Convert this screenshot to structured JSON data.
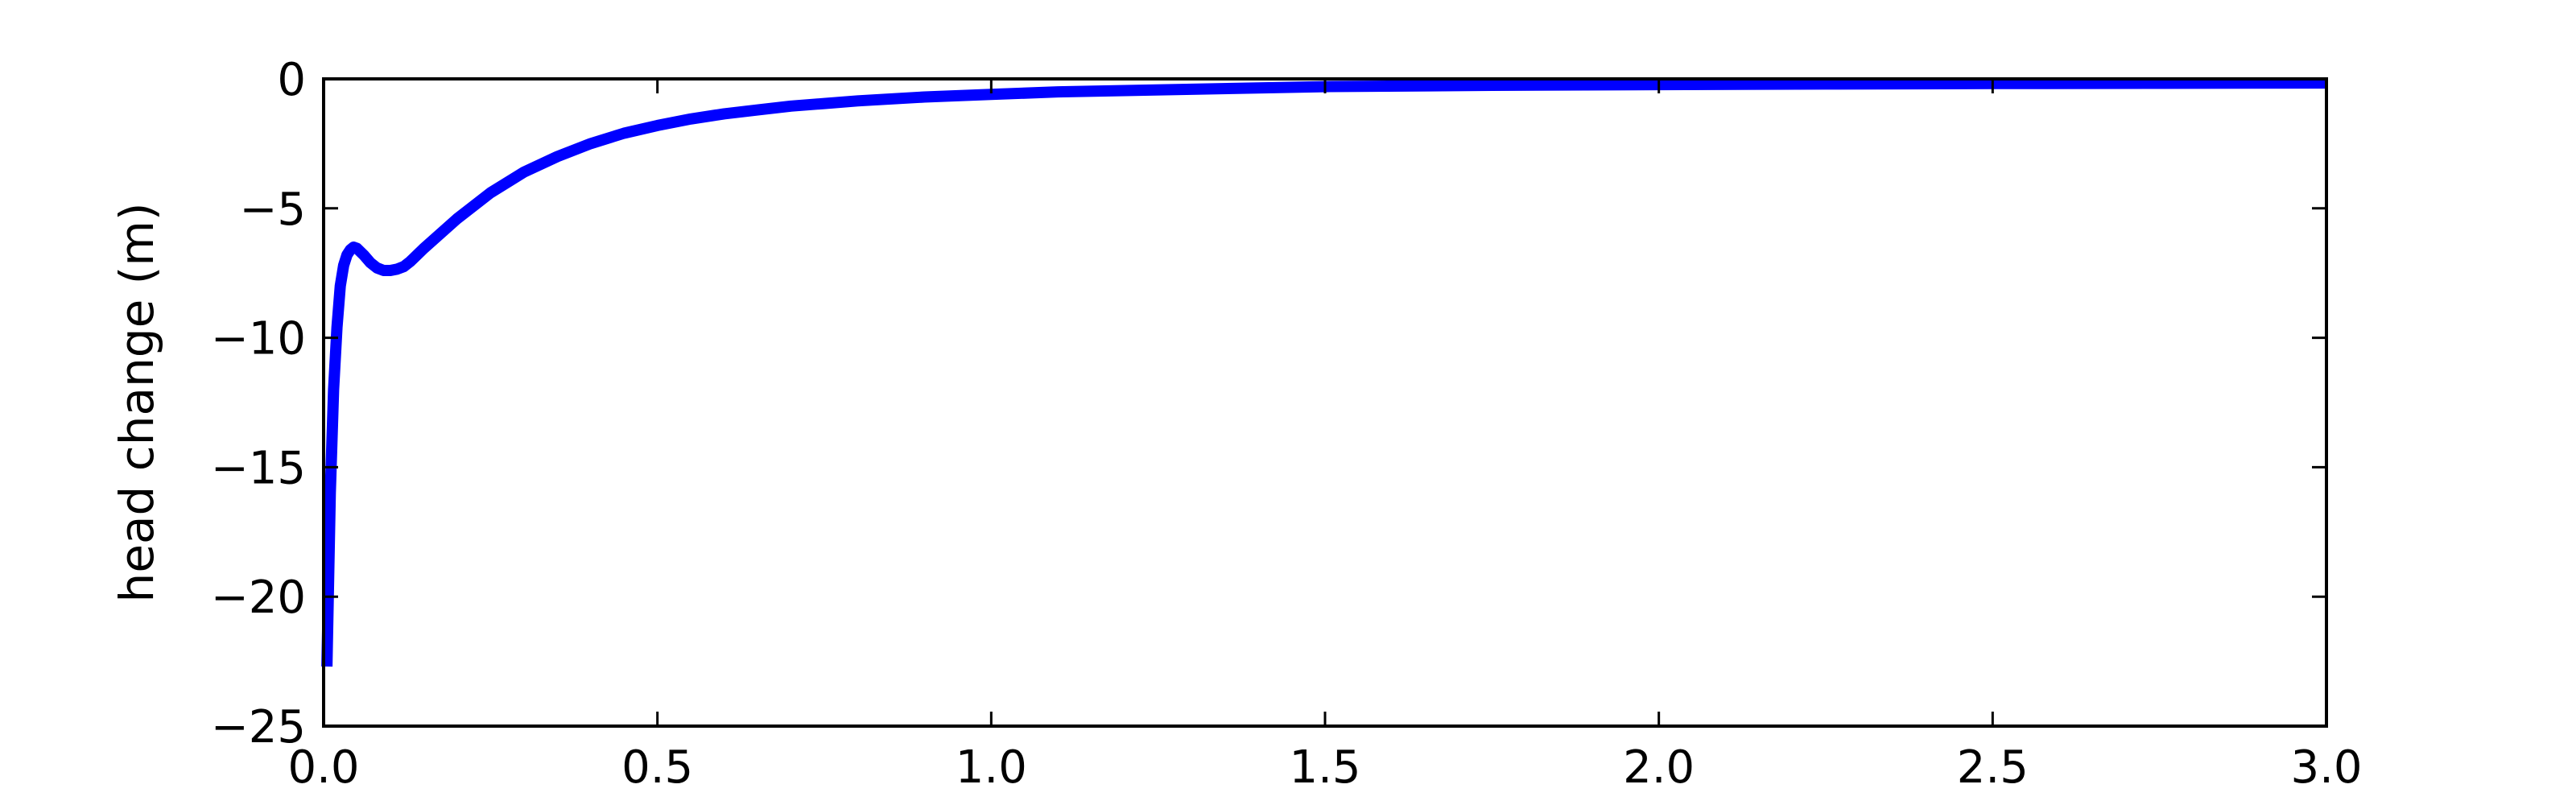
{
  "chart_data": {
    "type": "line",
    "title": "",
    "xlabel": "",
    "ylabel": "head change (m)",
    "xlim": [
      0.0,
      3.0
    ],
    "ylim": [
      -25,
      0
    ],
    "grid": false,
    "x_ticks": [
      0.0,
      0.5,
      1.0,
      1.5,
      2.0,
      2.5,
      3.0
    ],
    "x_tick_labels": [
      "0.0",
      "0.5",
      "1.0",
      "1.5",
      "2.0",
      "2.5",
      "3.0"
    ],
    "y_ticks": [
      0,
      -5,
      -10,
      -15,
      -20,
      -25
    ],
    "y_tick_labels": [
      "0",
      "−5",
      "−10",
      "−15",
      "−20",
      "−25"
    ],
    "series": [
      {
        "name": "head change",
        "color": "#0000ff",
        "x": [
          0.005,
          0.01,
          0.015,
          0.02,
          0.025,
          0.03,
          0.035,
          0.04,
          0.045,
          0.05,
          0.06,
          0.07,
          0.08,
          0.09,
          0.1,
          0.11,
          0.12,
          0.13,
          0.14,
          0.15,
          0.2,
          0.25,
          0.3,
          0.35,
          0.4,
          0.45,
          0.5,
          0.55,
          0.6,
          0.65,
          0.7,
          0.75,
          0.8,
          0.9,
          1.0,
          1.1,
          1.2,
          1.3,
          1.4,
          1.5,
          1.75,
          2.0,
          2.25,
          2.5,
          2.75,
          3.0
        ],
        "y": [
          -22.7,
          -16.0,
          -12.0,
          -9.6,
          -8.0,
          -7.2,
          -6.8,
          -6.6,
          -6.5,
          -6.55,
          -6.8,
          -7.1,
          -7.3,
          -7.4,
          -7.4,
          -7.35,
          -7.25,
          -7.05,
          -6.8,
          -6.55,
          -5.4,
          -4.4,
          -3.6,
          -3.0,
          -2.5,
          -2.1,
          -1.8,
          -1.55,
          -1.35,
          -1.2,
          -1.05,
          -0.95,
          -0.85,
          -0.7,
          -0.6,
          -0.5,
          -0.45,
          -0.4,
          -0.35,
          -0.3,
          -0.25,
          -0.22,
          -0.2,
          -0.18,
          -0.17,
          -0.16
        ]
      }
    ]
  }
}
